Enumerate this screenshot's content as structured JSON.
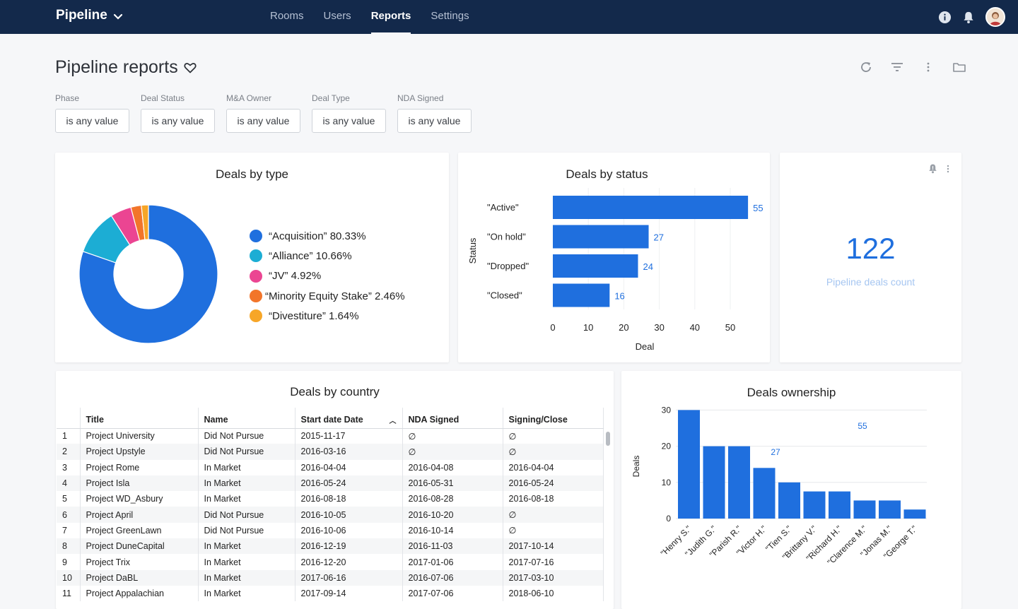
{
  "app": {
    "name": "Pipeline"
  },
  "nav": {
    "items": [
      {
        "label": "Rooms"
      },
      {
        "label": "Users"
      },
      {
        "label": "Reports",
        "active": true
      },
      {
        "label": "Settings"
      }
    ]
  },
  "page": {
    "title": "Pipeline reports"
  },
  "filters": [
    {
      "label": "Phase",
      "value": "is any value"
    },
    {
      "label": "Deal Status",
      "value": "is any value"
    },
    {
      "label": "M&A Owner",
      "value": "is any value"
    },
    {
      "label": "Deal Type",
      "value": "is any value"
    },
    {
      "label": "NDA Signed",
      "value": "is any value"
    }
  ],
  "colors": {
    "accent": "#1f6fde",
    "navbar": "#13294b"
  },
  "kpi": {
    "value": "122",
    "label": "Pipeline deals count"
  },
  "table": {
    "title": "Deals by country",
    "columns": [
      "Title",
      "Name",
      "Start date Date",
      "NDA Signed",
      "Signing/Close"
    ],
    "rows": [
      [
        "1",
        "Project University",
        "Did Not Pursue",
        "2015-11-17",
        "∅",
        "∅"
      ],
      [
        "2",
        "Project Upstyle",
        "Did Not Pursue",
        "2016-03-16",
        "∅",
        "∅"
      ],
      [
        "3",
        "Project Rome",
        "In Market",
        "2016-04-04",
        "2016-04-08",
        "2016-04-04"
      ],
      [
        "4",
        "Project Isla",
        "In Market",
        "2016-05-24",
        "2016-05-31",
        "2016-05-24"
      ],
      [
        "5",
        "Project WD_Asbury",
        "In Market",
        "2016-08-18",
        "2016-08-28",
        "2016-08-18"
      ],
      [
        "6",
        "Project April",
        "Did Not Pursue",
        "2016-10-05",
        "2016-10-20",
        "∅"
      ],
      [
        "7",
        "Project GreenLawn",
        "Did Not Pursue",
        "2016-10-06",
        "2016-10-14",
        "∅"
      ],
      [
        "8",
        "Project DuneCapital",
        "In Market",
        "2016-12-19",
        "2016-11-03",
        "2017-10-14"
      ],
      [
        "9",
        "Project Trix",
        "In Market",
        "2016-12-20",
        "2017-01-06",
        "2017-07-16"
      ],
      [
        "10",
        "Project DaBL",
        "In Market",
        "2017-06-16",
        "2016-07-06",
        "2017-03-10"
      ],
      [
        "11",
        "Project Appalachian",
        "In Market",
        "2017-09-14",
        "2017-07-06",
        "2018-06-10"
      ]
    ]
  },
  "chart_data": [
    {
      "type": "pie",
      "title": "Deals by type",
      "categories": [
        "“Acquisition”",
        "“Alliance”",
        "“JV”",
        "“Minority Equity Stake”",
        "“Divestiture”"
      ],
      "values": [
        80.33,
        10.66,
        4.92,
        2.46,
        1.64
      ],
      "legend_labels": [
        "“Acquisition” 80.33%",
        "“Alliance” 10.66%",
        "“JV” 4.92%",
        "“Minority Equity Stake” 2.46%",
        "“Divestiture” 1.64%"
      ],
      "colors": [
        "#1f6fde",
        "#1cadd4",
        "#eb4592",
        "#f2752a",
        "#f7a628"
      ]
    },
    {
      "type": "bar",
      "orientation": "horizontal",
      "title": "Deals by status",
      "categories": [
        "\"Active\"",
        "\"On hold\"",
        "\"Dropped\"",
        "\"Closed\""
      ],
      "values": [
        55,
        27,
        24,
        16
      ],
      "xlabel": "Deal",
      "ylabel": "Status",
      "xlim": [
        0,
        55
      ],
      "xticks": [
        0,
        10,
        20,
        30,
        40,
        50
      ]
    },
    {
      "type": "bar",
      "title": "Deals ownership",
      "categories": [
        "\"Henry S.\"",
        "\"Judith G.\"",
        "\"Parish R.\"",
        "\"Victor H.\"",
        "\"Tien S.\"",
        "\"Brittany V.\"",
        "\"Richard H.\"",
        "\"Clarence M.\"",
        "\"Jonas M.\"",
        "\"George T.\""
      ],
      "values": [
        30,
        20,
        20,
        14,
        10,
        7.5,
        7.5,
        5,
        5,
        2.5
      ],
      "annotations": [
        "55",
        "27"
      ],
      "ylabel": "Deals",
      "ylim": [
        0,
        30
      ],
      "yticks": [
        0,
        10,
        20,
        30
      ]
    }
  ]
}
